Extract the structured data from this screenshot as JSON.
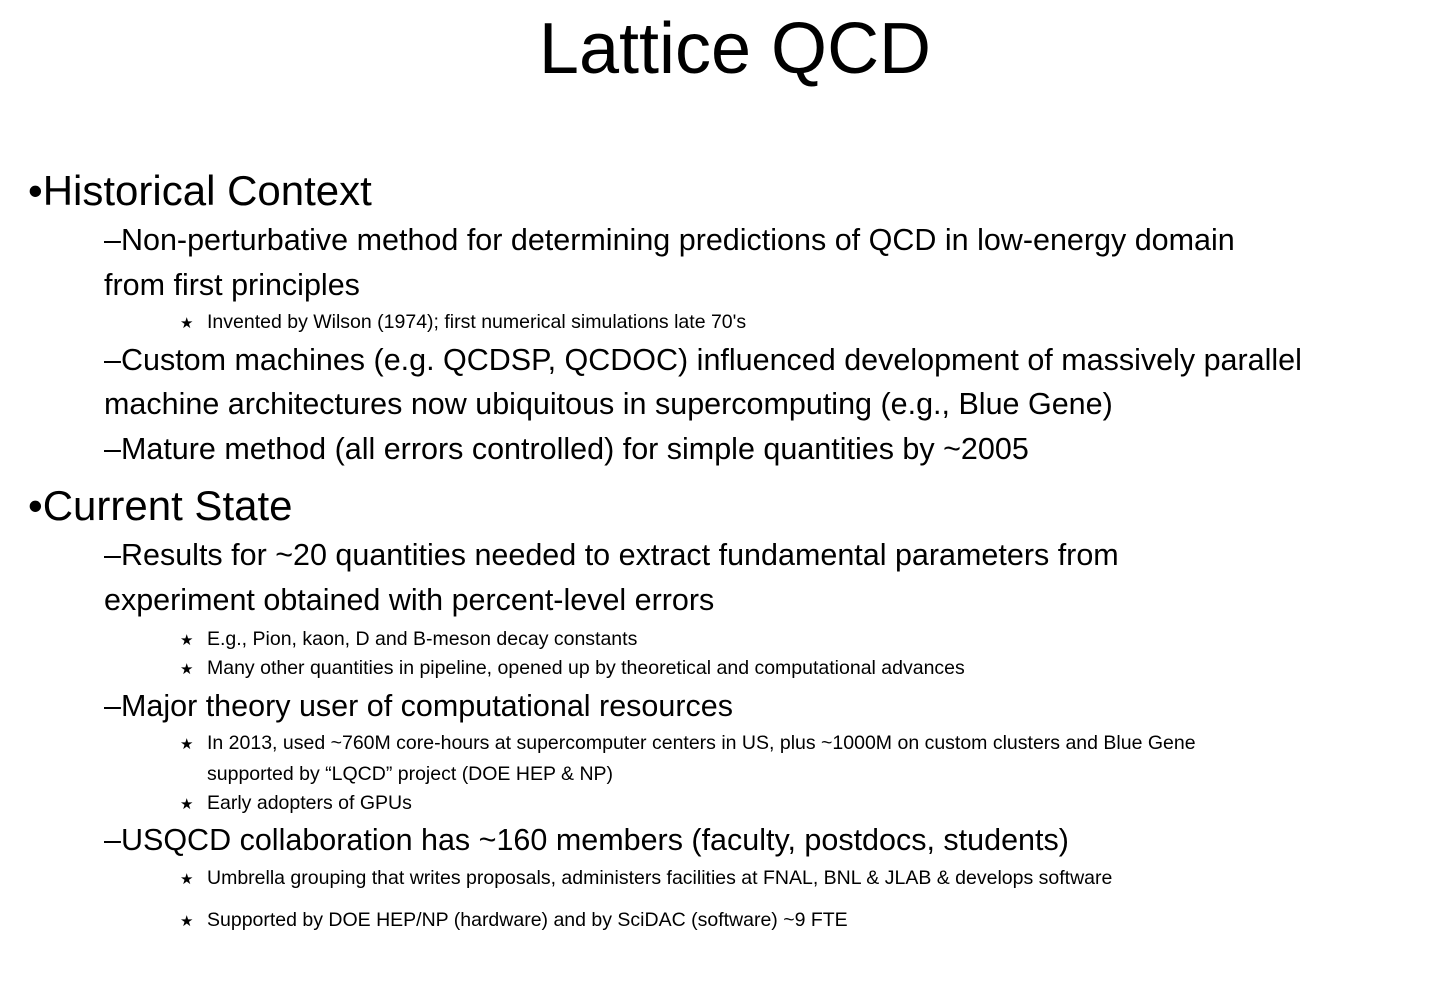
{
  "slide": {
    "title": "Lattice QCD",
    "bullet_char": "•",
    "dash_char": "–",
    "star_char": "★",
    "sections": [
      {
        "heading": "Historical Context",
        "items": [
          {
            "text_line1": "Non-perturbative method for determining predictions of QCD in low-energy domain",
            "text_line2": "from first principles",
            "subitems": [
              "Invented by Wilson (1974); first numerical simulations late 70's"
            ]
          },
          {
            "text_line1": "Custom machines (e.g. QCDSP, QCDOC) influenced development of massively parallel",
            "text_line2": "machine architectures now ubiquitous in supercomputing (e.g., Blue Gene)"
          },
          {
            "text_line1": "Mature method (all errors controlled) for simple quantities by ~2005"
          }
        ]
      },
      {
        "heading": "Current State",
        "items": [
          {
            "text_line1": "Results for ~20 quantities needed to extract fundamental parameters from",
            "text_line2": "experiment obtained with percent-level errors",
            "subitems": [
              "E.g., Pion, kaon, D and B-meson decay constants",
              "Many other quantities in pipeline, opened up by theoretical and computational advances"
            ]
          },
          {
            "text_line1": "Major theory user of computational resources",
            "subitems": [
              "In 2013, used ~760M core-hours at supercomputer centers in US, plus ~1000M on custom clusters and Blue Gene",
              "Early adopters of GPUs"
            ],
            "subitem1_line2": "supported by “LQCD” project (DOE HEP & NP)"
          },
          {
            "text_line1": "USQCD collaboration has ~160 members (faculty, postdocs, students)",
            "subitems": [
              "Umbrella grouping that writes proposals, administers facilities at FNAL, BNL & JLAB & develops software",
              "Supported by DOE HEP/NP (hardware) and by SciDAC (software) ~9 FTE"
            ]
          }
        ]
      }
    ]
  }
}
